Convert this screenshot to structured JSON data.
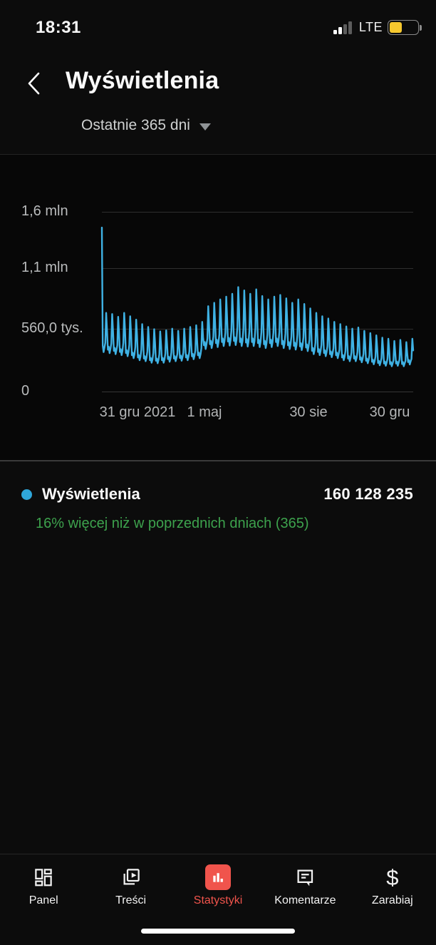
{
  "status_bar": {
    "time": "18:31",
    "network": "LTE",
    "signal_bars_total": 4,
    "signal_bars_filled": 2,
    "battery_fill_ratio": 0.4,
    "battery_color": "#f6c82e"
  },
  "header": {
    "title": "Wyświetlenia"
  },
  "period_selector": {
    "label": "Ostatnie 365 dni"
  },
  "chart_data": {
    "type": "line",
    "series_name": "Wyświetlenia",
    "unit": "views, values in thousands (tys.)",
    "title": "Wyświetlenia — Ostatnie 365 dni",
    "xlabel": "",
    "ylabel": "",
    "grid": true,
    "legend_position": "below",
    "ylim": [
      0,
      1600
    ],
    "y_ticks": [
      {
        "label": "1,6 mln",
        "value": 1600
      },
      {
        "label": "1,1 mln",
        "value": 1100
      },
      {
        "label": "560,0 tys.",
        "value": 560
      },
      {
        "label": "0",
        "value": 0
      }
    ],
    "x_ticks": [
      "31 gru 2021",
      "1 maj",
      "30 sie",
      "30 gru"
    ],
    "x_range_days": 365,
    "first_day_value": 1460,
    "weekly_peaks": [
      700,
      690,
      665,
      700,
      670,
      640,
      600,
      575,
      555,
      535,
      545,
      560,
      540,
      560,
      575,
      590,
      620,
      760,
      790,
      820,
      845,
      870,
      930,
      900,
      870,
      910,
      850,
      820,
      845,
      860,
      830,
      790,
      820,
      780,
      740,
      700,
      670,
      650,
      620,
      600,
      580,
      560,
      570,
      540,
      520,
      500,
      480,
      470,
      450,
      460,
      440,
      470
    ],
    "weekly_troughs": [
      390,
      380,
      370,
      360,
      350,
      330,
      310,
      300,
      285,
      280,
      285,
      295,
      300,
      305,
      310,
      320,
      330,
      420,
      430,
      440,
      450,
      455,
      460,
      450,
      445,
      450,
      440,
      430,
      440,
      450,
      430,
      420,
      415,
      410,
      400,
      370,
      360,
      350,
      340,
      330,
      310,
      300,
      300,
      290,
      280,
      270,
      260,
      255,
      250,
      255,
      250,
      268
    ],
    "total": "160 128 235"
  },
  "legend": {
    "label": "Wyświetlenia",
    "value": "160 128 235",
    "delta": "16% więcej niż w poprzednich dniach (365)"
  },
  "bottom_nav": {
    "items": [
      {
        "label": "Panel",
        "icon": "dashboard-icon",
        "active": false
      },
      {
        "label": "Treści",
        "icon": "content-library-icon",
        "active": false
      },
      {
        "label": "Statystyki",
        "icon": "bar-chart-icon",
        "active": true
      },
      {
        "label": "Komentarze",
        "icon": "comments-icon",
        "active": false
      },
      {
        "label": "Zarabiaj",
        "icon": "dollar-icon",
        "active": false
      }
    ]
  },
  "colors": {
    "line_blue": "#3fb2e4",
    "legend_dot_blue": "#2fa7da",
    "positive_green": "#3da24d",
    "active_red": "#f0544c",
    "background": "#0c0c0c"
  }
}
